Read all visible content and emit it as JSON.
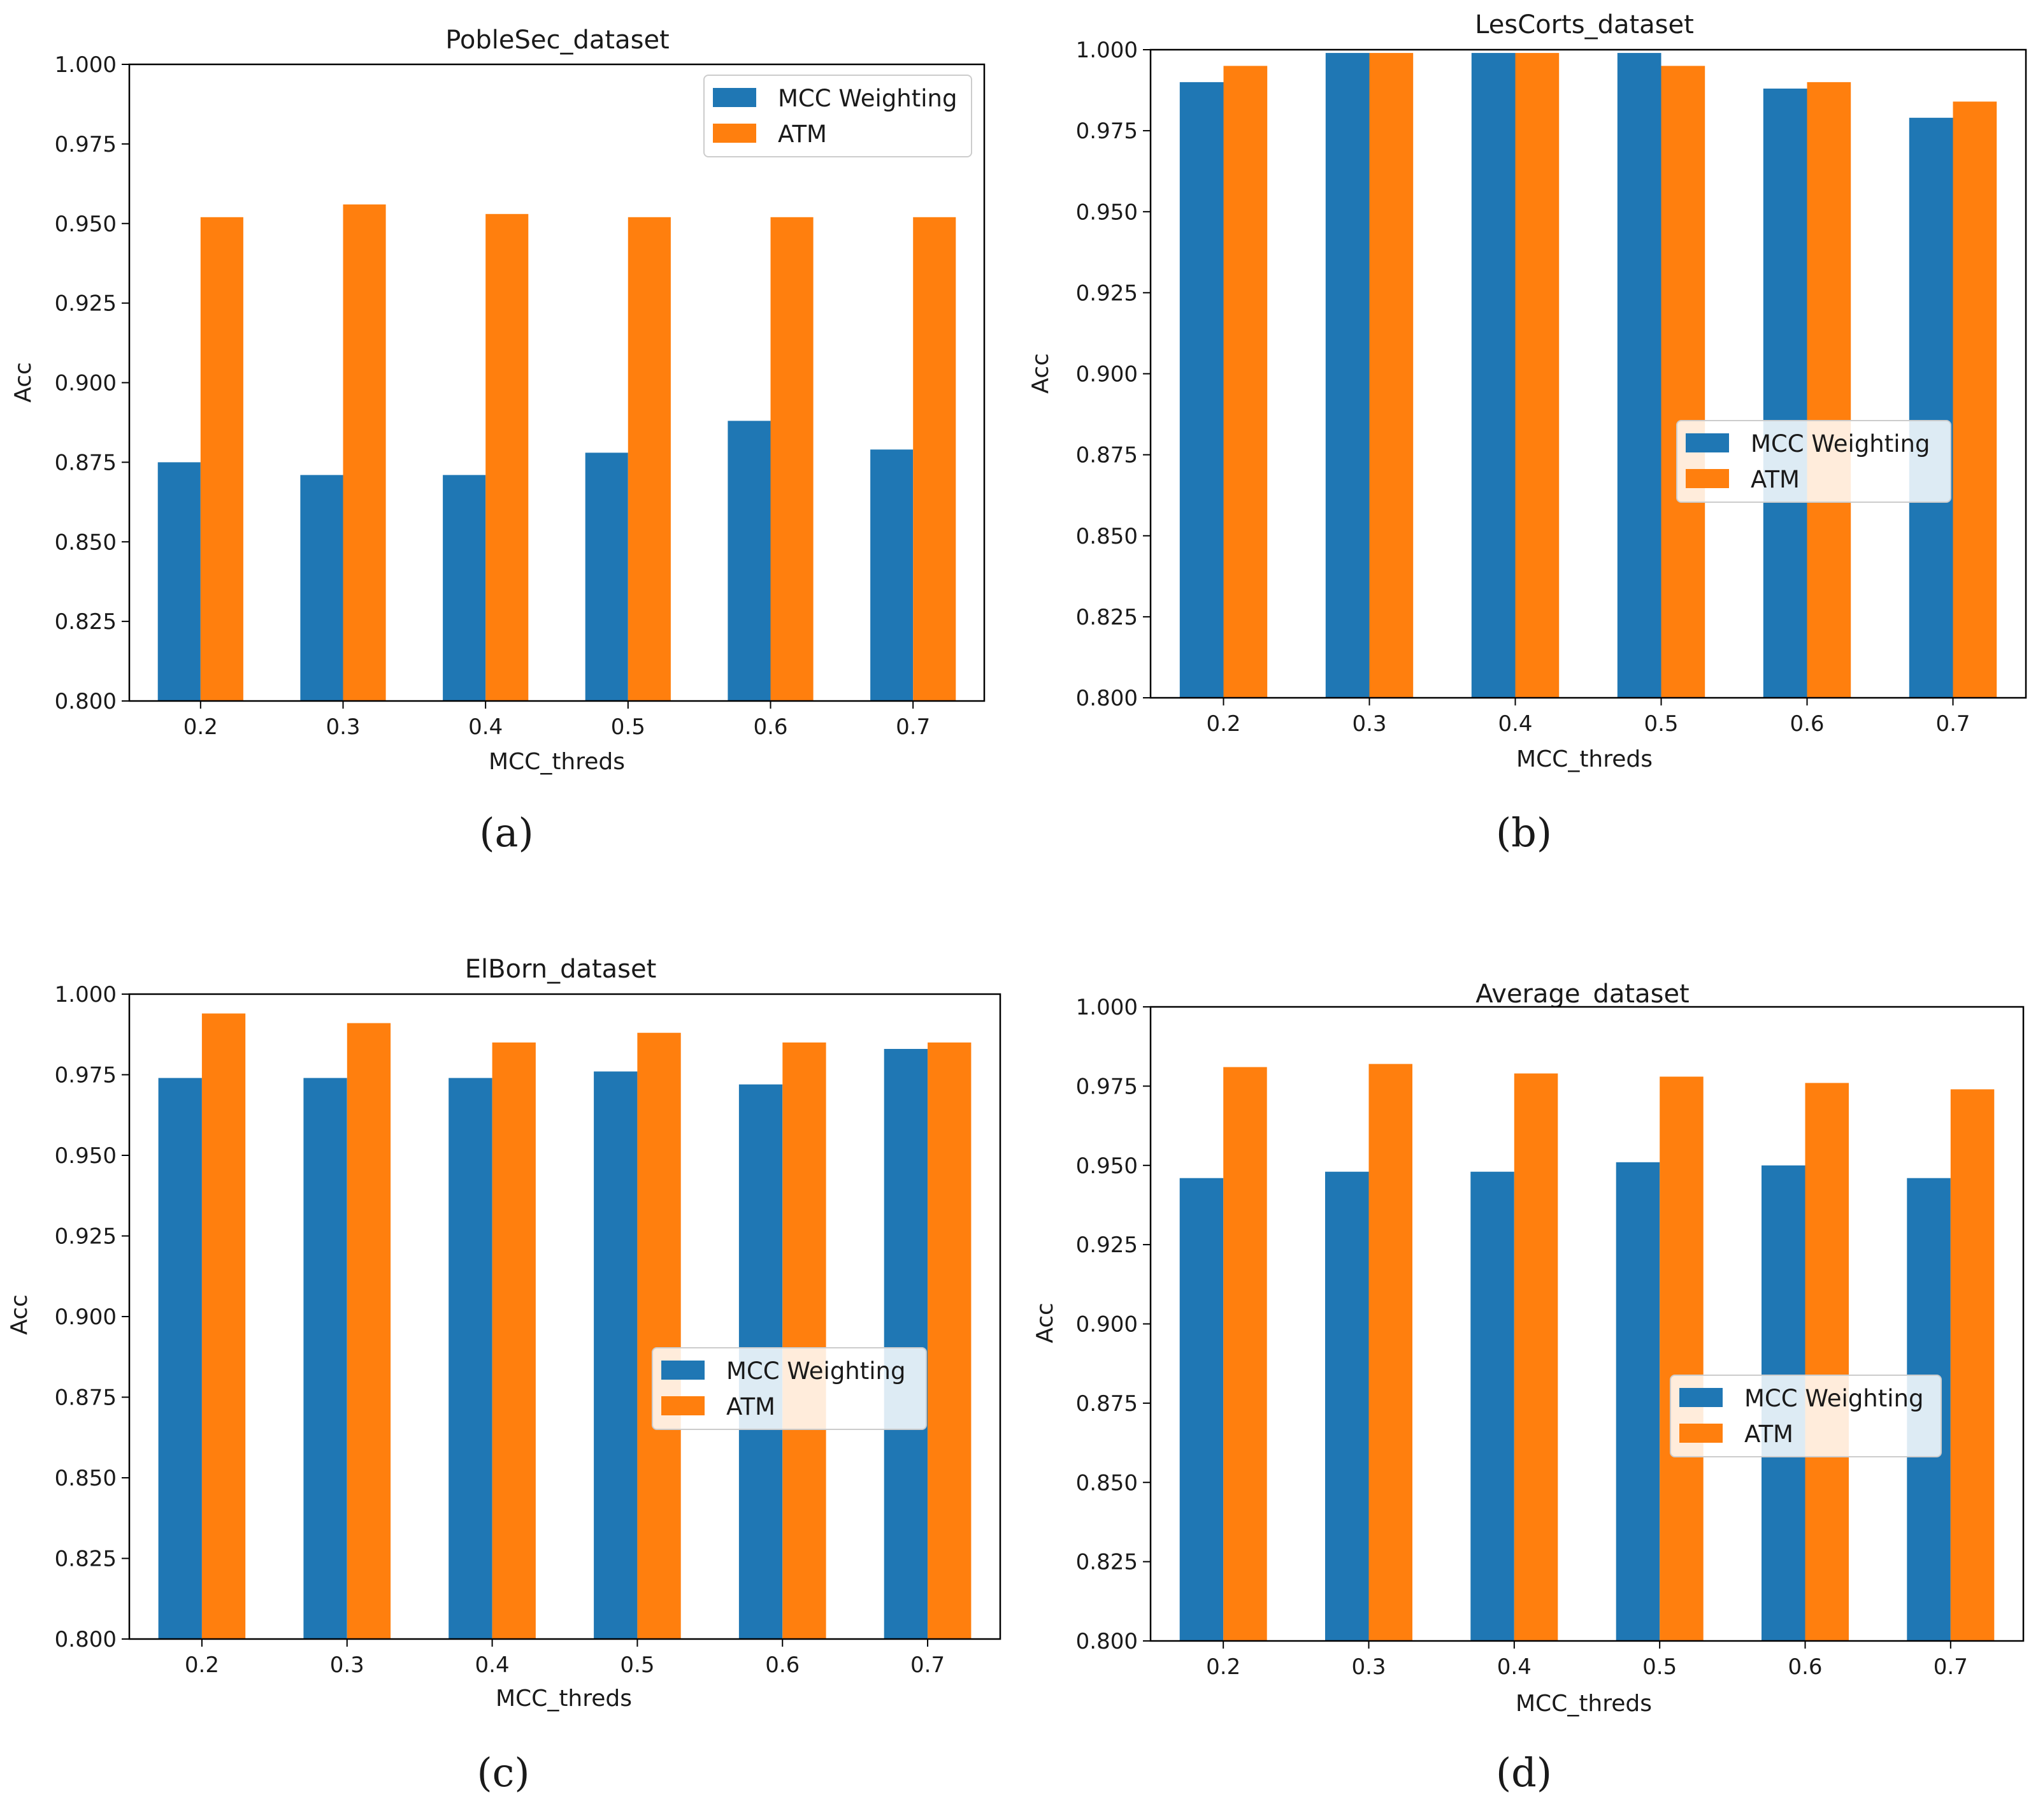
{
  "colors": {
    "mcc": "#1f77b4",
    "atm": "#ff7f0e",
    "axis": "#000000",
    "legend_border": "#cccccc"
  },
  "chart_data": [
    {
      "type": "bar",
      "panel": "a",
      "caption": "(a)",
      "title": "PobleSec_dataset",
      "xlabel": "MCC_threds",
      "ylabel": "Acc",
      "ylim": [
        0.8,
        1.0
      ],
      "yticks": [
        "0.800",
        "0.825",
        "0.850",
        "0.875",
        "0.900",
        "0.925",
        "0.950",
        "0.975",
        "1.000"
      ],
      "categories": [
        "0.2",
        "0.3",
        "0.4",
        "0.5",
        "0.6",
        "0.7"
      ],
      "legend_position": "upper right",
      "series": [
        {
          "name": "MCC Weighting",
          "values": [
            0.875,
            0.871,
            0.871,
            0.878,
            0.888,
            0.879
          ]
        },
        {
          "name": "ATM",
          "values": [
            0.952,
            0.956,
            0.953,
            0.952,
            0.952,
            0.952
          ]
        }
      ]
    },
    {
      "type": "bar",
      "panel": "b",
      "caption": "(b)",
      "title": "LesCorts_dataset",
      "xlabel": "MCC_threds",
      "ylabel": "Acc",
      "ylim": [
        0.8,
        1.0
      ],
      "yticks": [
        "0.800",
        "0.825",
        "0.850",
        "0.875",
        "0.900",
        "0.925",
        "0.950",
        "0.975",
        "1.000"
      ],
      "categories": [
        "0.2",
        "0.3",
        "0.4",
        "0.5",
        "0.6",
        "0.7"
      ],
      "legend_position": "center right",
      "series": [
        {
          "name": "MCC Weighting",
          "values": [
            0.99,
            0.999,
            0.999,
            0.999,
            0.988,
            0.979
          ]
        },
        {
          "name": "ATM",
          "values": [
            0.995,
            0.999,
            0.999,
            0.995,
            0.99,
            0.984
          ]
        }
      ]
    },
    {
      "type": "bar",
      "panel": "c",
      "caption": "(c)",
      "title": "ElBorn_dataset",
      "xlabel": "MCC_threds",
      "ylabel": "Acc",
      "ylim": [
        0.8,
        1.0
      ],
      "yticks": [
        "0.800",
        "0.825",
        "0.850",
        "0.875",
        "0.900",
        "0.925",
        "0.950",
        "0.975",
        "1.000"
      ],
      "categories": [
        "0.2",
        "0.3",
        "0.4",
        "0.5",
        "0.6",
        "0.7"
      ],
      "legend_position": "center right",
      "series": [
        {
          "name": "MCC Weighting",
          "values": [
            0.974,
            0.974,
            0.974,
            0.976,
            0.972,
            0.983
          ]
        },
        {
          "name": "ATM",
          "values": [
            0.994,
            0.991,
            0.985,
            0.988,
            0.985,
            0.985
          ]
        }
      ]
    },
    {
      "type": "bar",
      "panel": "d",
      "caption": "(d)",
      "title": "Average_dataset",
      "xlabel": "MCC_threds",
      "ylabel": "Acc",
      "ylim": [
        0.8,
        1.0
      ],
      "yticks": [
        "0.800",
        "0.825",
        "0.850",
        "0.875",
        "0.900",
        "0.925",
        "0.950",
        "0.975",
        "1.000"
      ],
      "categories": [
        "0.2",
        "0.3",
        "0.4",
        "0.5",
        "0.6",
        "0.7"
      ],
      "legend_position": "center right",
      "series": [
        {
          "name": "MCC Weighting",
          "values": [
            0.946,
            0.948,
            0.948,
            0.951,
            0.95,
            0.946
          ]
        },
        {
          "name": "ATM",
          "values": [
            0.981,
            0.982,
            0.979,
            0.978,
            0.976,
            0.974
          ]
        }
      ]
    }
  ]
}
